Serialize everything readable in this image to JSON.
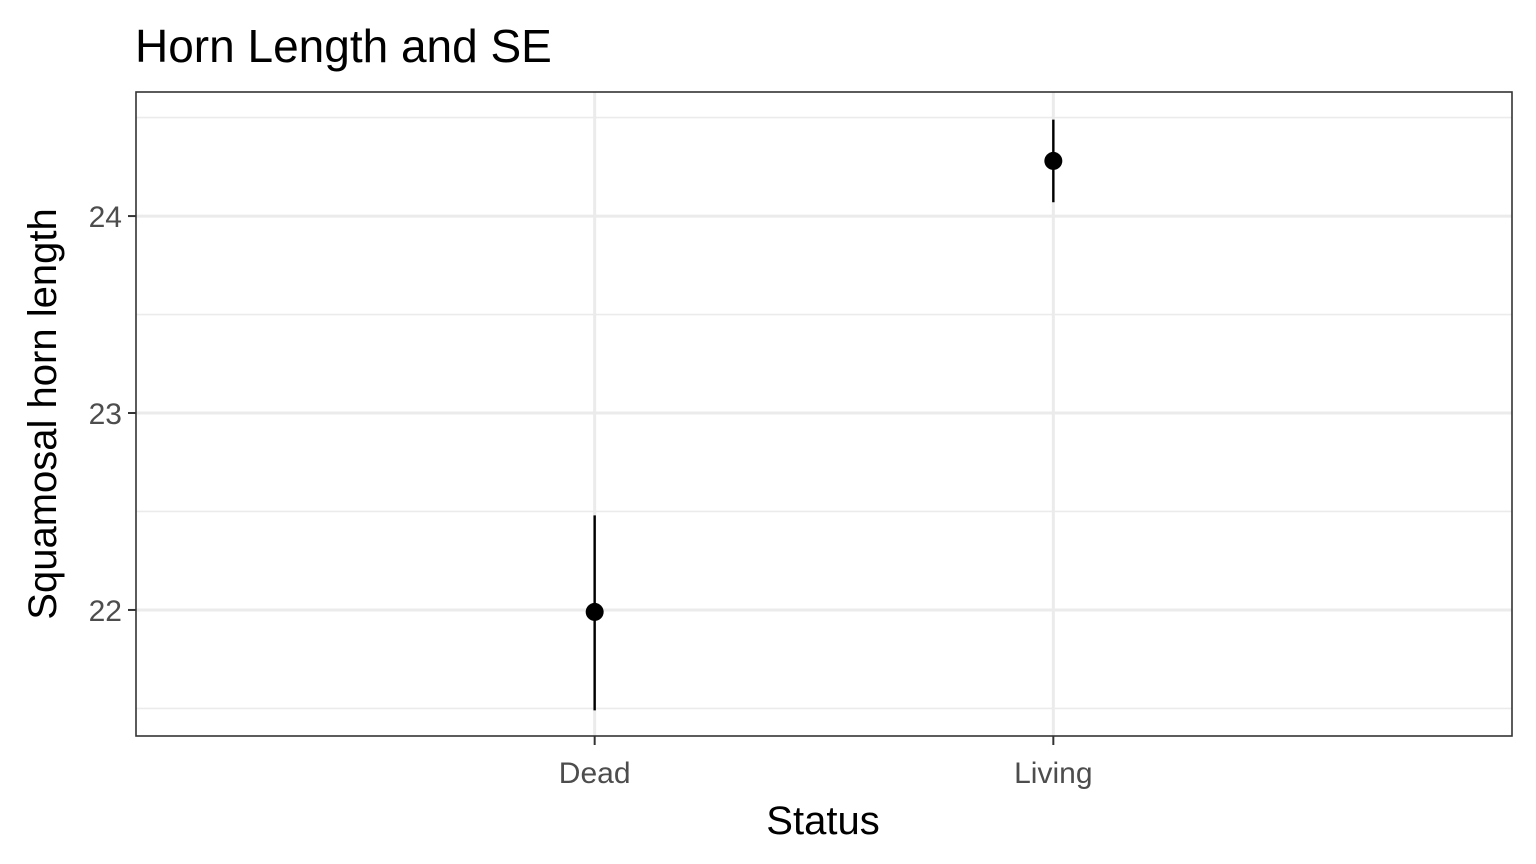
{
  "chart_data": {
    "type": "scatter",
    "title": "Horn Length and SE",
    "xlabel": "Status",
    "ylabel": "Squamosal horn length",
    "categories": [
      "Dead",
      "Living"
    ],
    "points": [
      {
        "category": "Dead",
        "value": 21.99,
        "se_lower": 21.49,
        "se_upper": 22.48
      },
      {
        "category": "Living",
        "value": 24.28,
        "se_lower": 24.07,
        "se_upper": 24.49
      }
    ],
    "y_ticks": [
      22,
      23,
      24
    ],
    "y_tick_labels": [
      "22",
      "23",
      "24"
    ],
    "ylim": [
      21.36,
      24.63
    ],
    "grid": true,
    "colors": {
      "point": "#000000",
      "errorbar": "#000000",
      "grid": "#ebebeb",
      "border": "#333333",
      "tick_label": "#4d4d4d"
    }
  }
}
